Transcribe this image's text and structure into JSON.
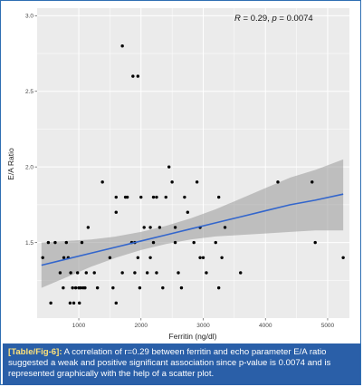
{
  "caption": {
    "label": "[Table/Fig-6]:",
    "text": "A correlation of r=0.29 between ferritin and echo parameter E/A ratio suggested a weak and positive significant association since p-value is 0.0074 and is represented graphically with the help of a scatter plot."
  },
  "colors": {
    "panel_bg": "#ebebeb",
    "grid": "#ffffff",
    "points": "#000000",
    "trend_line": "#3366cc",
    "confidence_band": "#999999",
    "caption_bg": "#2a5fa8",
    "caption_label": "#ffe27a",
    "border": "#2f6fb3"
  },
  "chart_data": {
    "type": "scatter",
    "title": "",
    "xlabel": "Ferritin (ng/dl)",
    "ylabel": "E/A Ratio",
    "annotation": {
      "text_R": "R",
      "text_r_value": " = 0.29, ",
      "text_p": "p",
      "text_p_value": " = 0.0074"
    },
    "xlim": [
      330,
      5350
    ],
    "ylim": [
      1.0,
      3.05
    ],
    "x_ticks": [
      1000,
      2000,
      3000,
      4000,
      5000
    ],
    "x_tick_labels": [
      "1000",
      "2000",
      "3000",
      "4000",
      "5000"
    ],
    "y_ticks": [
      1.5,
      2.0,
      2.5,
      3.0
    ],
    "y_tick_labels": [
      "1.5",
      "2.0",
      "2.5",
      "3.0"
    ],
    "grid": true,
    "trend": {
      "x": [
        400,
        800,
        1200,
        1600,
        2000,
        2400,
        2800,
        3200,
        3600,
        4000,
        4400,
        4800,
        5250
      ],
      "y": [
        1.35,
        1.39,
        1.43,
        1.47,
        1.51,
        1.55,
        1.59,
        1.63,
        1.67,
        1.71,
        1.75,
        1.78,
        1.82
      ],
      "lower": [
        1.2,
        1.27,
        1.34,
        1.4,
        1.45,
        1.49,
        1.52,
        1.54,
        1.55,
        1.56,
        1.57,
        1.58,
        1.58
      ],
      "upper": [
        1.5,
        1.51,
        1.52,
        1.54,
        1.57,
        1.61,
        1.66,
        1.72,
        1.79,
        1.86,
        1.93,
        1.98,
        2.05
      ]
    },
    "points": [
      [
        420,
        1.4
      ],
      [
        510,
        1.5
      ],
      [
        550,
        1.1
      ],
      [
        620,
        1.5
      ],
      [
        700,
        1.3
      ],
      [
        750,
        1.2
      ],
      [
        760,
        1.4
      ],
      [
        800,
        1.5
      ],
      [
        830,
        1.4
      ],
      [
        860,
        1.1
      ],
      [
        870,
        1.3
      ],
      [
        900,
        1.2
      ],
      [
        920,
        1.1
      ],
      [
        950,
        1.2
      ],
      [
        980,
        1.3
      ],
      [
        1000,
        1.2
      ],
      [
        1010,
        1.1
      ],
      [
        1030,
        1.2
      ],
      [
        1050,
        1.5
      ],
      [
        1070,
        1.2
      ],
      [
        1100,
        1.2
      ],
      [
        1120,
        1.3
      ],
      [
        1150,
        1.6
      ],
      [
        1250,
        1.3
      ],
      [
        1300,
        1.2
      ],
      [
        1380,
        1.9
      ],
      [
        1500,
        1.4
      ],
      [
        1550,
        1.2
      ],
      [
        1600,
        1.7
      ],
      [
        1600,
        1.8
      ],
      [
        1600,
        1.1
      ],
      [
        1700,
        1.3
      ],
      [
        1750,
        1.8
      ],
      [
        1780,
        1.8
      ],
      [
        1700,
        2.8
      ],
      [
        1850,
        1.5
      ],
      [
        1870,
        2.6
      ],
      [
        1900,
        1.5
      ],
      [
        1950,
        2.6
      ],
      [
        1900,
        1.3
      ],
      [
        1950,
        1.4
      ],
      [
        1980,
        1.2
      ],
      [
        2000,
        1.8
      ],
      [
        2050,
        1.6
      ],
      [
        2100,
        1.3
      ],
      [
        2150,
        1.6
      ],
      [
        2150,
        1.4
      ],
      [
        2200,
        1.8
      ],
      [
        2250,
        1.8
      ],
      [
        2200,
        1.5
      ],
      [
        2250,
        1.3
      ],
      [
        2300,
        1.6
      ],
      [
        2350,
        1.2
      ],
      [
        2400,
        1.8
      ],
      [
        2450,
        2.0
      ],
      [
        2500,
        1.9
      ],
      [
        2550,
        1.6
      ],
      [
        2600,
        1.3
      ],
      [
        2550,
        1.5
      ],
      [
        2650,
        1.2
      ],
      [
        2700,
        1.8
      ],
      [
        2750,
        1.7
      ],
      [
        2850,
        1.5
      ],
      [
        2900,
        1.9
      ],
      [
        2950,
        1.6
      ],
      [
        2950,
        1.4
      ],
      [
        3000,
        1.4
      ],
      [
        3050,
        1.3
      ],
      [
        3200,
        1.5
      ],
      [
        3250,
        1.8
      ],
      [
        3250,
        1.2
      ],
      [
        3300,
        1.4
      ],
      [
        3350,
        1.6
      ],
      [
        3600,
        1.3
      ],
      [
        4200,
        1.9
      ],
      [
        4750,
        1.9
      ],
      [
        4800,
        1.5
      ],
      [
        5250,
        1.4
      ]
    ]
  }
}
